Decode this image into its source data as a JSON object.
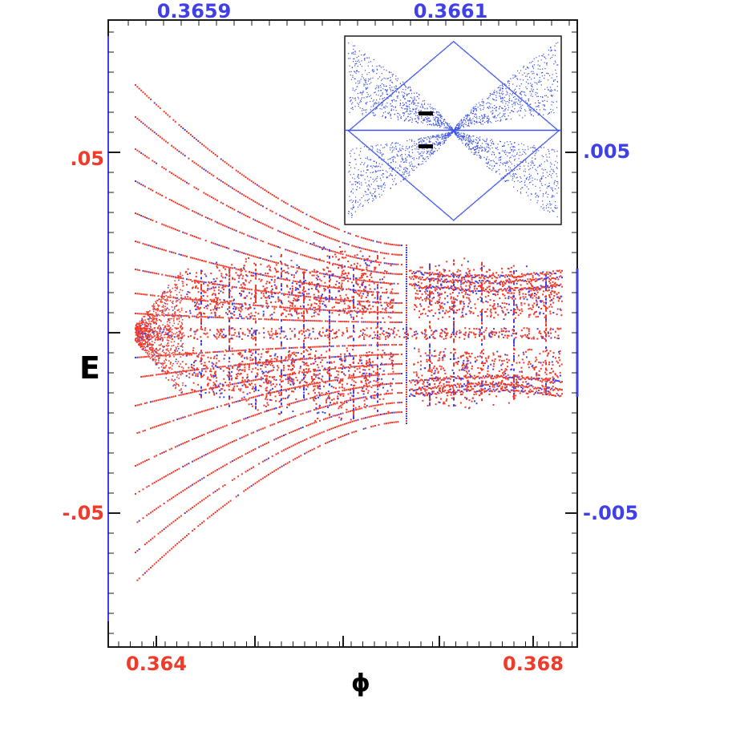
{
  "colors": {
    "primary_series": "#f03a2a",
    "secondary_series": "#4040e8",
    "frame": "#1a1a1a",
    "inset_series": "#3a50e8"
  },
  "chart_data": [
    {
      "type": "scatter",
      "title": "",
      "xlabel": "ϕ",
      "ylabel": "E",
      "x_ticks_bottom": [
        "0.364",
        "0.368"
      ],
      "x_ticks_top": [
        "0.3659",
        "0.3661"
      ],
      "y_ticks_left": [
        ".05",
        "-.05"
      ],
      "y_ticks_right": [
        ".005",
        "-.005"
      ],
      "xlim_bottom": [
        0.3635,
        0.3681
      ],
      "ylim_left": [
        -0.088,
        0.075
      ],
      "xlim_top": [
        0.3658,
        0.3662
      ],
      "ylim_right": [
        -0.0088,
        0.0075
      ],
      "series": [
        {
          "name": "",
          "color": "#f03a2a",
          "axes": "bottom-left"
        },
        {
          "name": "",
          "color": "#4040e8",
          "axes": "top-right"
        }
      ],
      "description_note": "",
      "grid": false
    },
    {
      "type": "scatter",
      "title": "",
      "position": "inset top-right",
      "color": "#3a50e8",
      "grid": false
    }
  ]
}
